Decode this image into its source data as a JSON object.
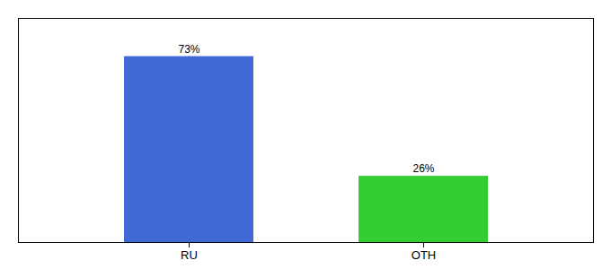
{
  "chart_data": {
    "type": "bar",
    "categories": [
      "RU",
      "OTH"
    ],
    "values": [
      73,
      26
    ],
    "colors": [
      "#4169d4",
      "#33cc33"
    ],
    "ylim": [
      0,
      88
    ],
    "data_labels": true,
    "value_labels": [
      "73%",
      "26%"
    ],
    "tick_labels": "x"
  }
}
